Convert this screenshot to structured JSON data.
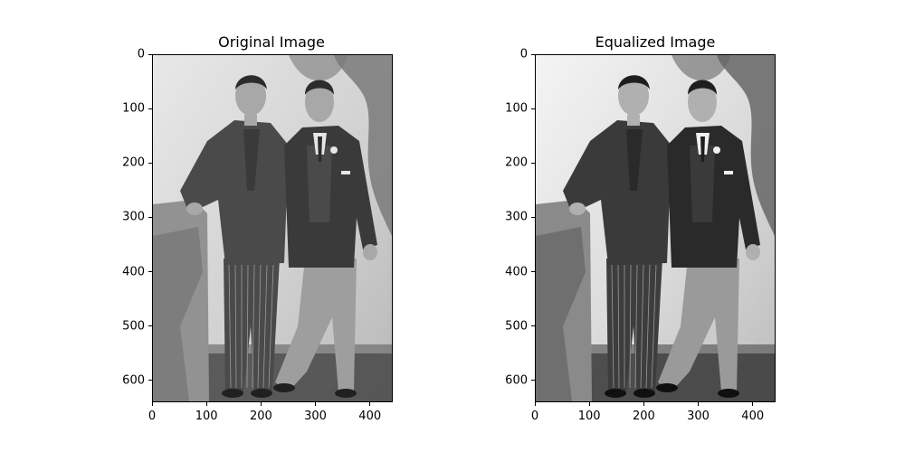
{
  "chart_data": [
    {
      "type": "image",
      "title": "Original Image",
      "tone": "original",
      "xlim": [
        0,
        442
      ],
      "ylim": [
        0,
        640
      ],
      "xticks": [
        0,
        100,
        200,
        300,
        400
      ],
      "yticks": [
        0,
        100,
        200,
        300,
        400,
        500,
        600
      ],
      "colormap": "gray"
    },
    {
      "type": "image",
      "title": "Equalized Image",
      "tone": "equalized",
      "xlim": [
        0,
        442
      ],
      "ylim": [
        0,
        640
      ],
      "xticks": [
        0,
        100,
        200,
        300,
        400
      ],
      "yticks": [
        0,
        100,
        200,
        300,
        400,
        500,
        600
      ],
      "colormap": "gray"
    }
  ]
}
